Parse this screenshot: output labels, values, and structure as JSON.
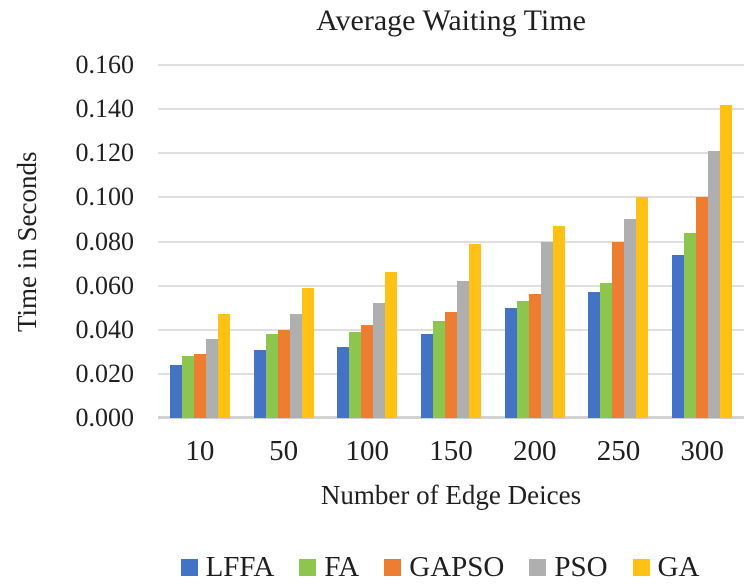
{
  "title": "Average Waiting Time",
  "chart_data": {
    "type": "bar",
    "title": "Average Waiting Time",
    "xlabel": "Number of Edge Deices",
    "ylabel": "Time in Seconds",
    "categories": [
      "10",
      "50",
      "100",
      "150",
      "200",
      "250",
      "300"
    ],
    "series": [
      {
        "name": "LFFA",
        "color": "#4472C4",
        "values": [
          0.024,
          0.031,
          0.032,
          0.038,
          0.05,
          0.057,
          0.074
        ]
      },
      {
        "name": "FA",
        "color": "#8CC64F",
        "values": [
          0.028,
          0.038,
          0.039,
          0.044,
          0.053,
          0.061,
          0.084
        ]
      },
      {
        "name": "GAPSO",
        "color": "#ED7D31",
        "values": [
          0.029,
          0.04,
          0.042,
          0.048,
          0.056,
          0.08,
          0.1
        ]
      },
      {
        "name": "PSO",
        "color": "#AFAFAF",
        "values": [
          0.036,
          0.047,
          0.052,
          0.062,
          0.08,
          0.09,
          0.121
        ]
      },
      {
        "name": "GA",
        "color": "#FFC113",
        "values": [
          0.047,
          0.059,
          0.066,
          0.079,
          0.087,
          0.1,
          0.142
        ]
      }
    ],
    "ylim": [
      0,
      0.16
    ],
    "ytick_step": 0.02,
    "ytick_decimals": 3,
    "grid": true,
    "legend_position": "bottom",
    "text_color": "#1f1f1f",
    "gridline_color": "#dededf"
  }
}
